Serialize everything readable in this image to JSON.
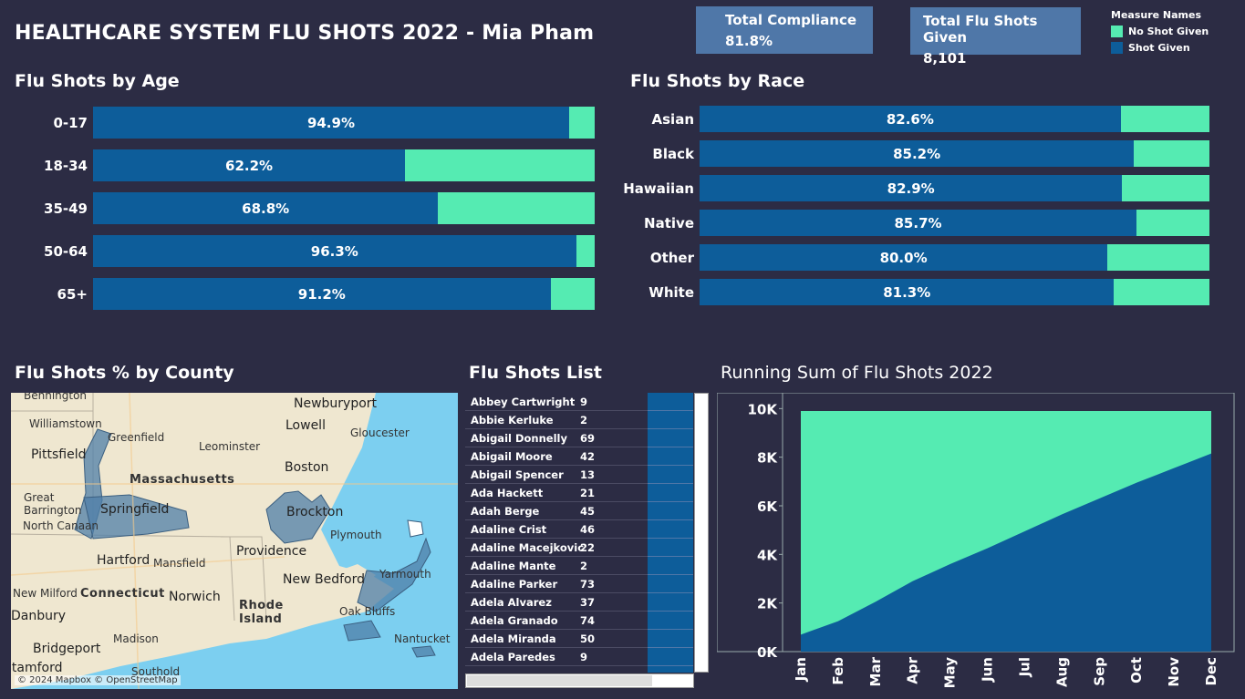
{
  "title": "HEALTHCARE SYSTEM FLU SHOTS 2022 - Mia Pham",
  "kpis": {
    "compliance_label": "Total Compliance",
    "compliance_value": "81.8%",
    "total_label": "Total Flu Shots Given",
    "total_value": "8,101"
  },
  "legend": {
    "title": "Measure Names",
    "items": [
      {
        "label": "No Shot Given",
        "color": "#55ebb2"
      },
      {
        "label": "Shot Given",
        "color": "#0d5d9a"
      }
    ]
  },
  "age": {
    "title": "Flu Shots by Age",
    "rows": [
      {
        "label": "0-17",
        "pct": 94.9,
        "text": "94.9%"
      },
      {
        "label": "18-34",
        "pct": 62.2,
        "text": "62.2%"
      },
      {
        "label": "35-49",
        "pct": 68.8,
        "text": "68.8%"
      },
      {
        "label": "50-64",
        "pct": 96.3,
        "text": "96.3%"
      },
      {
        "label": "65+",
        "pct": 91.2,
        "text": "91.2%"
      }
    ]
  },
  "race": {
    "title": "Flu Shots by Race",
    "rows": [
      {
        "label": "Asian",
        "pct": 82.6,
        "text": "82.6%"
      },
      {
        "label": "Black",
        "pct": 85.2,
        "text": "85.2%"
      },
      {
        "label": "Hawaiian",
        "pct": 82.9,
        "text": "82.9%"
      },
      {
        "label": "Native",
        "pct": 85.7,
        "text": "85.7%"
      },
      {
        "label": "Other",
        "pct": 80.0,
        "text": "80.0%"
      },
      {
        "label": "White",
        "pct": 81.3,
        "text": "81.3%"
      }
    ]
  },
  "map": {
    "title": "Flu Shots % by County",
    "credit": "© 2024 Mapbox © OpenStreetMap",
    "places": [
      "Bennington",
      "Newburyport",
      "Williamstown",
      "Lowell",
      "Gloucester",
      "Greenfield",
      "Leominster",
      "Pittsfield",
      "Massachusetts",
      "Boston",
      "Great Barrington",
      "Springfield",
      "Brockton",
      "North Canaan",
      "Plymouth",
      "Hartford",
      "Mansfield",
      "Providence",
      "New Bedford",
      "Yarmouth",
      "New Milford",
      "Connecticut",
      "Norwich",
      "Rhode Island",
      "Oak Bluffs",
      "Danbury",
      "Madison",
      "Nantucket",
      "Bridgeport",
      "Stamford",
      "Southold"
    ]
  },
  "list": {
    "title": "Flu Shots List",
    "rows": [
      {
        "name": "Abbey Cartwright",
        "count": "9"
      },
      {
        "name": "Abbie Kerluke",
        "count": "2"
      },
      {
        "name": "Abigail Donnelly",
        "count": "69"
      },
      {
        "name": "Abigail Moore",
        "count": "42"
      },
      {
        "name": "Abigail Spencer",
        "count": "13"
      },
      {
        "name": "Ada Hackett",
        "count": "21"
      },
      {
        "name": "Adah Berge",
        "count": "45"
      },
      {
        "name": "Adaline Crist",
        "count": "46"
      },
      {
        "name": "Adaline Macejkovic",
        "count": "22"
      },
      {
        "name": "Adaline Mante",
        "count": "2"
      },
      {
        "name": "Adaline Parker",
        "count": "73"
      },
      {
        "name": "Adela Alvarez",
        "count": "37"
      },
      {
        "name": "Adela Granado",
        "count": "74"
      },
      {
        "name": "Adela Miranda",
        "count": "50"
      },
      {
        "name": "Adela Paredes",
        "count": "9"
      }
    ]
  },
  "running": {
    "title": "Running Sum of Flu Shots 2022"
  },
  "chart_data": [
    {
      "type": "bar",
      "title": "Flu Shots by Age",
      "orientation": "horizontal-stacked-100",
      "categories": [
        "0-17",
        "18-34",
        "35-49",
        "50-64",
        "65+"
      ],
      "series": [
        {
          "name": "Shot Given",
          "values": [
            94.9,
            62.2,
            68.8,
            96.3,
            91.2
          ]
        },
        {
          "name": "No Shot Given",
          "values": [
            5.1,
            37.8,
            31.2,
            3.7,
            8.8
          ]
        }
      ]
    },
    {
      "type": "bar",
      "title": "Flu Shots by Race",
      "orientation": "horizontal-stacked-100",
      "categories": [
        "Asian",
        "Black",
        "Hawaiian",
        "Native",
        "Other",
        "White"
      ],
      "series": [
        {
          "name": "Shot Given",
          "values": [
            82.6,
            85.2,
            82.9,
            85.7,
            80.0,
            81.3
          ]
        },
        {
          "name": "No Shot Given",
          "values": [
            17.4,
            14.8,
            17.1,
            14.3,
            20.0,
            18.7
          ]
        }
      ]
    },
    {
      "type": "area",
      "title": "Running Sum of Flu Shots 2022",
      "categories": [
        "Jan",
        "Feb",
        "Mar",
        "Apr",
        "May",
        "Jun",
        "Jul",
        "Aug",
        "Sep",
        "Oct",
        "Nov",
        "Dec"
      ],
      "yticks": [
        "0K",
        "2K",
        "4K",
        "6K",
        "8K",
        "10K"
      ],
      "ylim": [
        0,
        10500
      ],
      "series": [
        {
          "name": "Shot Given",
          "values": [
            700,
            1250,
            2050,
            2900,
            3600,
            4250,
            4950,
            5650,
            6300,
            6950,
            7550,
            8150
          ]
        },
        {
          "name": "No Shot Given",
          "values": [
            9900,
            9900,
            9900,
            9900,
            9900,
            9900,
            9900,
            9900,
            9900,
            9900,
            9900,
            9900
          ]
        }
      ],
      "grid": false
    }
  ]
}
